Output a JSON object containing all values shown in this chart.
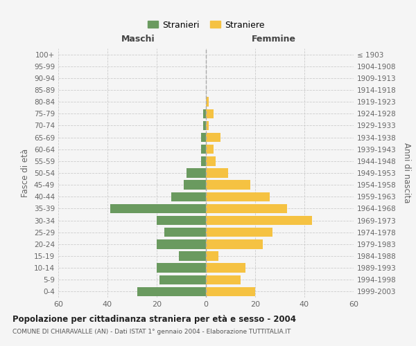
{
  "age_groups": [
    "0-4",
    "5-9",
    "10-14",
    "15-19",
    "20-24",
    "25-29",
    "30-34",
    "35-39",
    "40-44",
    "45-49",
    "50-54",
    "55-59",
    "60-64",
    "65-69",
    "70-74",
    "75-79",
    "80-84",
    "85-89",
    "90-94",
    "95-99",
    "100+"
  ],
  "birth_years": [
    "1999-2003",
    "1994-1998",
    "1989-1993",
    "1984-1988",
    "1979-1983",
    "1974-1978",
    "1969-1973",
    "1964-1968",
    "1959-1963",
    "1954-1958",
    "1949-1953",
    "1944-1948",
    "1939-1943",
    "1934-1938",
    "1929-1933",
    "1924-1928",
    "1919-1923",
    "1914-1918",
    "1909-1913",
    "1904-1908",
    "≤ 1903"
  ],
  "maschi": [
    28,
    19,
    20,
    11,
    20,
    17,
    20,
    39,
    14,
    9,
    8,
    2,
    2,
    2,
    1,
    1,
    0,
    0,
    0,
    0,
    0
  ],
  "femmine": [
    20,
    14,
    16,
    5,
    23,
    27,
    43,
    33,
    26,
    18,
    9,
    4,
    3,
    6,
    1,
    3,
    1,
    0,
    0,
    0,
    0
  ],
  "maschi_color": "#6a9a5f",
  "femmine_color": "#f5c242",
  "background_color": "#f5f5f5",
  "grid_color": "#cccccc",
  "title": "Popolazione per cittadinanza straniera per età e sesso - 2004",
  "subtitle": "COMUNE DI CHIARAVALLE (AN) - Dati ISTAT 1° gennaio 2004 - Elaborazione TUTTITALIA.IT",
  "ylabel_left": "Fasce di età",
  "ylabel_right": "Anni di nascita",
  "xlabel_maschi": "Maschi",
  "xlabel_femmine": "Femmine",
  "legend_maschi": "Stranieri",
  "legend_femmine": "Straniere",
  "xlim": 60
}
